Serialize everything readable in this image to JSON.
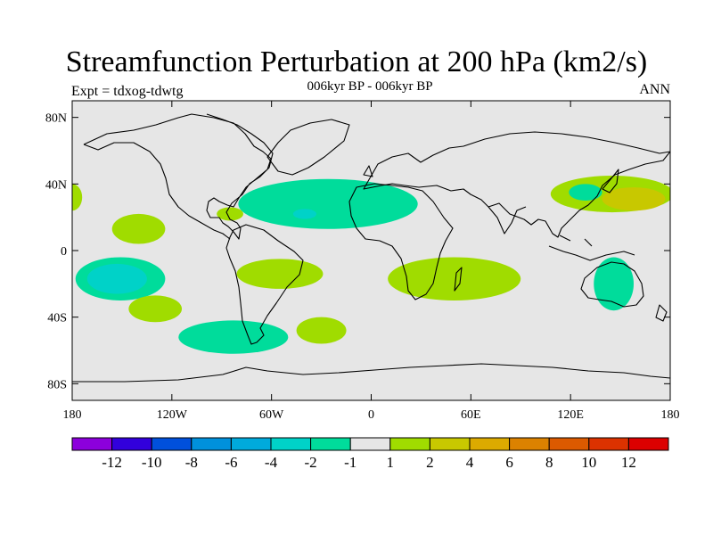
{
  "header": {
    "title": "Streamfunction Perturbation at 200 hPa (km2/s)",
    "subtitle": "006kyr BP - 006kyr BP",
    "left_label": "Expt = tdxog-tdwtg",
    "right_label": "ANN"
  },
  "map": {
    "projection": "cylindrical equidistant",
    "lon_range": [
      -180,
      180
    ],
    "lat_range": [
      -90,
      90
    ],
    "lat_ticks": [
      {
        "value": 80,
        "label": "80N"
      },
      {
        "value": 40,
        "label": "40N"
      },
      {
        "value": 0,
        "label": "0"
      },
      {
        "value": -40,
        "label": "40S"
      },
      {
        "value": -80,
        "label": "80S"
      }
    ],
    "lon_ticks": [
      {
        "value": -180,
        "label": "180"
      },
      {
        "value": -120,
        "label": "120W"
      },
      {
        "value": -60,
        "label": "60W"
      },
      {
        "value": 0,
        "label": "0"
      },
      {
        "value": 60,
        "label": "60E"
      },
      {
        "value": 120,
        "label": "120E"
      },
      {
        "value": 180,
        "label": "180"
      }
    ],
    "background_color": "#e6e6e6",
    "anomaly_regions": [
      {
        "name": "north-pacific-east",
        "lon": -180,
        "lat": 32,
        "rlon": 6,
        "rlat": 8,
        "level": "1 to 2",
        "color": "#a0dc00"
      },
      {
        "name": "tropical-pacific-north",
        "lon": -140,
        "lat": 13,
        "rlon": 16,
        "rlat": 9,
        "level": "1 to 2",
        "color": "#a0dc00"
      },
      {
        "name": "central-america",
        "lon": -85,
        "lat": 22,
        "rlon": 8,
        "rlat": 4,
        "level": "1 to 2",
        "color": "#a0dc00"
      },
      {
        "name": "south-pacific-west-outer",
        "lon": -151,
        "lat": -17,
        "rlon": 27,
        "rlat": 13,
        "level": "-2 to -1",
        "color": "#00dc9b"
      },
      {
        "name": "south-pacific-west-inner",
        "lon": -153,
        "lat": -17,
        "rlon": 18,
        "rlat": 9,
        "level": "-4 to -2",
        "color": "#00d2c8"
      },
      {
        "name": "south-pacific-east",
        "lon": -130,
        "lat": -35,
        "rlon": 16,
        "rlat": 8,
        "level": "1 to 2",
        "color": "#a0dc00"
      },
      {
        "name": "south-america",
        "lon": -55,
        "lat": -14,
        "rlon": 26,
        "rlat": 9,
        "level": "1 to 2",
        "color": "#a0dc00"
      },
      {
        "name": "south-atlantic",
        "lon": -30,
        "lat": -48,
        "rlon": 15,
        "rlat": 8,
        "level": "1 to 2",
        "color": "#a0dc00"
      },
      {
        "name": "southern-ocean-america",
        "lon": -83,
        "lat": -52,
        "rlon": 33,
        "rlat": 10,
        "level": "-2 to -1",
        "color": "#00dc9b"
      },
      {
        "name": "north-atlantic-africa-outer",
        "lon": -26,
        "lat": 28,
        "rlon": 54,
        "rlat": 15,
        "level": "-2 to -1",
        "color": "#00dc9b"
      },
      {
        "name": "north-atlantic-africa-inner",
        "lon": -40,
        "lat": 22,
        "rlon": 7,
        "rlat": 3,
        "level": "-4 to -2",
        "color": "#00d2c8"
      },
      {
        "name": "south-indian-ocean",
        "lon": 50,
        "lat": -17,
        "rlon": 40,
        "rlat": 13,
        "level": "1 to 2",
        "color": "#a0dc00"
      },
      {
        "name": "north-pacific-west-outer",
        "lon": 145,
        "lat": 34,
        "rlon": 37,
        "rlat": 11,
        "level": "1 to 2",
        "color": "#a0dc00"
      },
      {
        "name": "north-pacific-west-inner",
        "lon": 158,
        "lat": 31,
        "rlon": 19,
        "rlat": 7,
        "level": "2 to 4",
        "color": "#c8c800"
      },
      {
        "name": "japan-negative",
        "lon": 129,
        "lat": 35,
        "rlon": 10,
        "rlat": 5,
        "level": "-2 to -1",
        "color": "#00dc9b"
      },
      {
        "name": "australia",
        "lon": 146,
        "lat": -20,
        "rlon": 12,
        "rlat": 16,
        "level": "-2 to -1",
        "color": "#00dc9b"
      }
    ]
  },
  "colorbar": {
    "boxes": [
      "#8c00dc",
      "#3200dc",
      "#0050dc",
      "#0091dc",
      "#00aadc",
      "#00d2c8",
      "#00dc9b",
      "#e6e6e6",
      "#a0dc00",
      "#c8c800",
      "#dcaa00",
      "#dc8200",
      "#dc5a00",
      "#dc3200",
      "#dc0000"
    ],
    "labels": [
      "-12",
      "-10",
      "-8",
      "-6",
      "-4",
      "-2",
      "-1",
      "1",
      "2",
      "4",
      "6",
      "8",
      "10",
      "12"
    ]
  }
}
